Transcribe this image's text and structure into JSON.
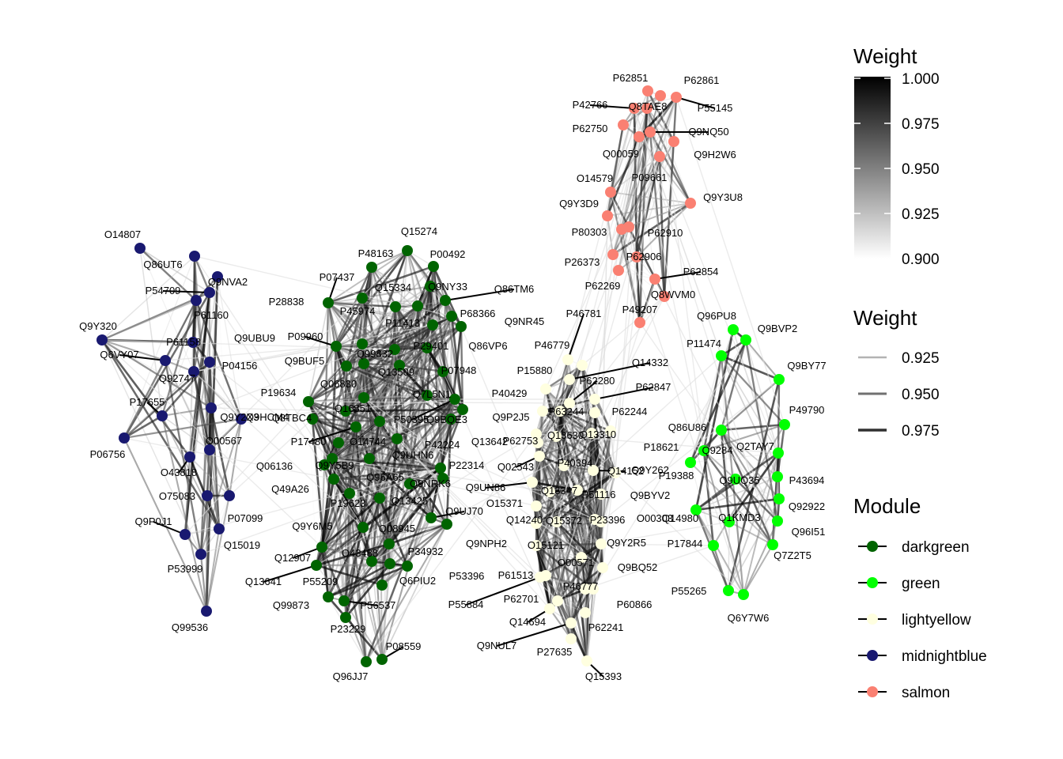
{
  "legends": {
    "color_weight": {
      "title": "Weight",
      "ticks": [
        "1.000",
        "0.975",
        "0.950",
        "0.925",
        "0.900"
      ],
      "colors": [
        "#000000",
        "#ffffff"
      ]
    },
    "width_weight": {
      "title": "Weight",
      "items": [
        "0.925",
        "0.950",
        "0.975"
      ]
    },
    "module": {
      "title": "Module",
      "items": [
        {
          "label": "darkgreen",
          "color": "#006400"
        },
        {
          "label": "green",
          "color": "#00ff00"
        },
        {
          "label": "lightyellow",
          "color": "#ffffe0"
        },
        {
          "label": "midnightblue",
          "color": "#191970"
        },
        {
          "label": "salmon",
          "color": "#fa8072"
        }
      ]
    }
  },
  "modules": {
    "darkgreen": {
      "color": "#006400",
      "labels": [
        "Q15274",
        "P48163",
        "P00492",
        "P07437",
        "Q15334",
        "Q9NY33",
        "Q86TM6",
        "P28838",
        "P45974",
        "P11413",
        "P68366",
        "Q9NR45",
        "P09960",
        "Q9UBU9",
        "Q99832",
        "P29401",
        "Q86VP6",
        "Q9BUF5",
        "Q13509",
        "P07948",
        "Q06830",
        "Q7L5N1",
        "P19634",
        "Q16851",
        "P50395",
        "Q9BQE3",
        "Q8TBC4",
        "P42224",
        "Q13642",
        "P17480",
        "O14744",
        "Q9UHN6",
        "P22314",
        "Q06136",
        "Q9Y5B9",
        "Q96A65",
        "Q49A26",
        "Q9NRK6",
        "Q13425",
        "P19623",
        "Q9UJ70",
        "Q9Y6M5",
        "Q08945",
        "Q9NPH2",
        "Q12907",
        "O43488",
        "P34932",
        "Q13641",
        "P55209",
        "Q6PIU2",
        "P53396",
        "Q99873",
        "P56537",
        "P23229",
        "P08559",
        "Q96JJ7"
      ]
    },
    "green": {
      "color": "#00ff00",
      "labels": [
        "Q96PU8",
        "Q9BVP2",
        "P11474",
        "Q9BY77",
        "P49790",
        "Q86U86",
        "Q9284",
        "Q2TAY7",
        "P19388",
        "Q9UQ35",
        "P43694",
        "Q92922",
        "Q14980",
        "Q1KMD3",
        "Q96I51",
        "P17844",
        "Q7Z2T5",
        "P55265",
        "Q6Y7W6"
      ]
    },
    "lightyellow": {
      "color": "#ffffe0",
      "labels": [
        "P46781",
        "P46779",
        "Q14332",
        "P15880",
        "P62280",
        "P62847",
        "P40429",
        "P63244",
        "P62244",
        "Q9P2J5",
        "P62753",
        "Q13630",
        "Q13310",
        "P18621",
        "Q02543",
        "P40394",
        "Q14152",
        "Q9Y262",
        "Q9UN86",
        "P51116",
        "Q9BYV2",
        "O15371",
        "Q13347",
        "P23396",
        "O00303",
        "Q14240",
        "Q15372",
        "Q9Y2R5",
        "O15121",
        "O00571",
        "Q9BQ52",
        "P61513",
        "P46777",
        "P60866",
        "P55884",
        "P62701",
        "Q14694",
        "P62241",
        "Q9NUL7",
        "P27635",
        "Q15393"
      ]
    },
    "midnightblue": {
      "color": "#191970",
      "labels": [
        "O14807",
        "Q86UT6",
        "Q9NVA2",
        "P54709",
        "P61160",
        "Q9Y320",
        "P61158",
        "Q6VY07",
        "P04156",
        "Q92747",
        "Q9Y2X3",
        "Q9HCM4",
        "P17655",
        "O00567",
        "P06756",
        "O43818",
        "O75083",
        "P07099",
        "Q9P0J1",
        "Q15019",
        "P53999",
        "Q99536"
      ]
    },
    "salmon": {
      "color": "#fa8072",
      "labels": [
        "P62851",
        "P62861",
        "P42766",
        "Q8TAE8",
        "P55145",
        "P62750",
        "Q9NQ50",
        "Q00059",
        "Q9H2W6",
        "P09661",
        "O14579",
        "Q9Y3D9",
        "Q9Y3U8",
        "P80303",
        "P62910",
        "P26373",
        "P62906",
        "P62854",
        "P62269",
        "Q8WVM0",
        "P49207"
      ]
    }
  }
}
